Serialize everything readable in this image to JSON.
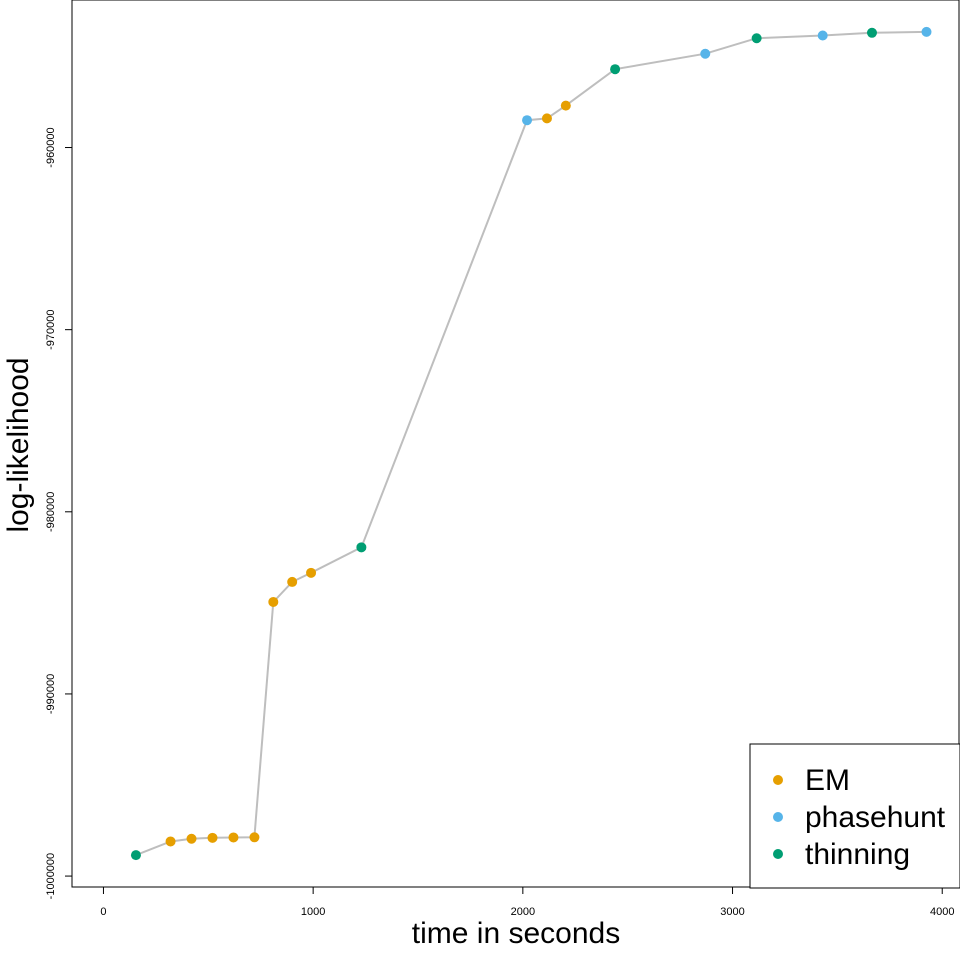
{
  "chart_data": {
    "type": "scatter",
    "xlabel": "time in seconds",
    "ylabel": "log-likelihood",
    "xlim": [
      -150,
      4080
    ],
    "ylim": [
      -1000600,
      -951900
    ],
    "xticks": [
      0,
      1000,
      2000,
      3000,
      4000
    ],
    "xtick_labels": [
      "0",
      "1000",
      "2000",
      "3000",
      "4000"
    ],
    "yticks": [
      -1000000,
      -990000,
      -980000,
      -970000,
      -960000
    ],
    "ytick_labels": [
      "-1000000",
      "-990000",
      "-980000",
      "-970000",
      "-960000"
    ],
    "grid": false,
    "line_color": "#bebebe",
    "legend_position": "bottom-right",
    "series": [
      {
        "name": "EM",
        "color": "#E69F00"
      },
      {
        "name": "phasehunt",
        "color": "#56B4E9"
      },
      {
        "name": "thinning",
        "color": "#009E73"
      }
    ],
    "points": [
      {
        "x": 155,
        "y": -998850,
        "series": "thinning"
      },
      {
        "x": 320,
        "y": -998100,
        "series": "EM"
      },
      {
        "x": 420,
        "y": -997950,
        "series": "EM"
      },
      {
        "x": 520,
        "y": -997900,
        "series": "EM"
      },
      {
        "x": 620,
        "y": -997880,
        "series": "EM"
      },
      {
        "x": 720,
        "y": -997870,
        "series": "EM"
      },
      {
        "x": 810,
        "y": -984950,
        "series": "EM"
      },
      {
        "x": 900,
        "y": -983850,
        "series": "EM"
      },
      {
        "x": 990,
        "y": -983350,
        "series": "EM"
      },
      {
        "x": 1230,
        "y": -981950,
        "series": "thinning"
      },
      {
        "x": 2020,
        "y": -958500,
        "series": "phasehunt"
      },
      {
        "x": 2115,
        "y": -958400,
        "series": "EM"
      },
      {
        "x": 2205,
        "y": -957700,
        "series": "EM"
      },
      {
        "x": 2440,
        "y": -955700,
        "series": "thinning"
      },
      {
        "x": 2870,
        "y": -954850,
        "series": "phasehunt"
      },
      {
        "x": 3115,
        "y": -954000,
        "series": "thinning"
      },
      {
        "x": 3430,
        "y": -953850,
        "series": "phasehunt"
      },
      {
        "x": 3665,
        "y": -953700,
        "series": "thinning"
      },
      {
        "x": 3925,
        "y": -953650,
        "series": "phasehunt"
      }
    ]
  }
}
